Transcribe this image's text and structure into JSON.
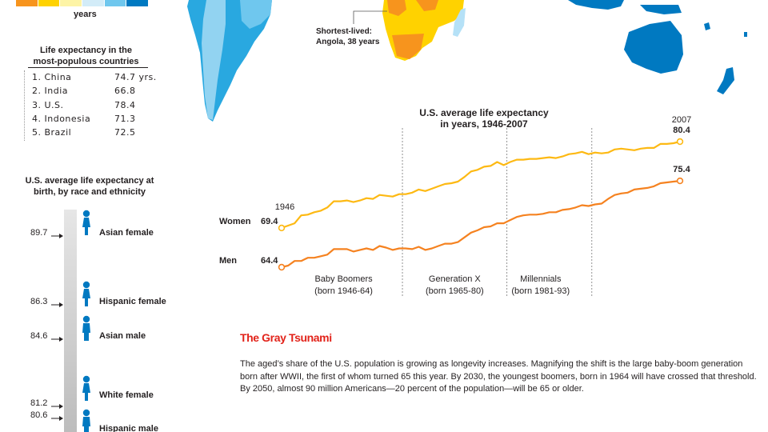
{
  "legend": {
    "colors": [
      "#f7941d",
      "#ffd200",
      "#fdf4a6",
      "#d3ecf8",
      "#6fc7ee",
      "#0079c1"
    ],
    "unit": "years"
  },
  "map": {
    "annotation_line1": "Shortest-lived:",
    "annotation_line2": "Angola, 38 years"
  },
  "populous": {
    "title_line1": "Life expectancy in the",
    "title_line2": "most-populous countries",
    "rows": [
      {
        "name": "1. China",
        "value": "74.7 yrs."
      },
      {
        "name": "2. India",
        "value": "66.8"
      },
      {
        "name": "3. U.S.",
        "value": "78.4"
      },
      {
        "name": "4. Indonesia",
        "value": "71.3"
      },
      {
        "name": "5. Brazil",
        "value": "72.5"
      }
    ]
  },
  "race": {
    "title_line1": "U.S. average life expectancy at",
    "title_line2": "birth, by race and ethnicity",
    "items": [
      {
        "label": "Asian female",
        "value": "89.7",
        "num": 89.7,
        "gender": "female"
      },
      {
        "label": "Hispanic female",
        "value": "86.3",
        "num": 86.3,
        "gender": "female"
      },
      {
        "label": "Asian male",
        "value": "84.6",
        "num": 84.6,
        "gender": "male"
      },
      {
        "label": "White female",
        "value": "81.2",
        "num": 81.2,
        "gender": "female"
      },
      {
        "label": "Hispanic male",
        "value": "80.6",
        "num": 80.6,
        "gender": "male"
      }
    ]
  },
  "chart_data": {
    "type": "line",
    "title": "U.S. average life expectancy in years, 1946-2007",
    "title_line1": "U.S. average life expectancy",
    "title_line2": "in years, 1946-2007",
    "start_label": "1946",
    "end_label": "2007",
    "xlim": [
      1946,
      2007
    ],
    "series": [
      {
        "name": "Women",
        "color": "#fdb913",
        "start_value": "69.4",
        "end_value": "80.4",
        "x": [
          1946,
          1947,
          1948,
          1949,
          1950,
          1951,
          1952,
          1953,
          1954,
          1955,
          1956,
          1957,
          1958,
          1959,
          1960,
          1961,
          1962,
          1963,
          1964,
          1965,
          1966,
          1967,
          1968,
          1969,
          1970,
          1971,
          1972,
          1973,
          1974,
          1975,
          1976,
          1977,
          1978,
          1979,
          1980,
          1981,
          1982,
          1983,
          1984,
          1985,
          1986,
          1987,
          1988,
          1989,
          1990,
          1991,
          1992,
          1993,
          1994,
          1995,
          1996,
          1997,
          1998,
          1999,
          2000,
          2001,
          2002,
          2003,
          2004,
          2005,
          2006,
          2007
        ],
        "values": [
          69.4,
          69.7,
          70.0,
          71.0,
          71.1,
          71.4,
          71.6,
          72.0,
          72.8,
          72.8,
          72.9,
          72.7,
          72.9,
          73.2,
          73.1,
          73.6,
          73.5,
          73.4,
          73.7,
          73.7,
          73.9,
          74.3,
          74.1,
          74.4,
          74.7,
          75.0,
          75.1,
          75.3,
          75.9,
          76.6,
          76.8,
          77.2,
          77.3,
          77.8,
          77.4,
          77.8,
          78.1,
          78.1,
          78.2,
          78.2,
          78.3,
          78.4,
          78.3,
          78.5,
          78.8,
          78.9,
          79.1,
          78.8,
          79.0,
          78.9,
          79.0,
          79.4,
          79.5,
          79.4,
          79.3,
          79.5,
          79.6,
          79.6,
          80.1,
          80.1,
          80.2,
          80.4
        ]
      },
      {
        "name": "Men",
        "color": "#f58220",
        "start_value": "64.4",
        "end_value": "75.4",
        "x": [
          1946,
          1947,
          1948,
          1949,
          1950,
          1951,
          1952,
          1953,
          1954,
          1955,
          1956,
          1957,
          1958,
          1959,
          1960,
          1961,
          1962,
          1963,
          1964,
          1965,
          1966,
          1967,
          1968,
          1969,
          1970,
          1971,
          1972,
          1973,
          1974,
          1975,
          1976,
          1977,
          1978,
          1979,
          1980,
          1981,
          1982,
          1983,
          1984,
          1985,
          1986,
          1987,
          1988,
          1989,
          1990,
          1991,
          1992,
          1993,
          1994,
          1995,
          1996,
          1997,
          1998,
          1999,
          2000,
          2001,
          2002,
          2003,
          2004,
          2005,
          2006,
          2007
        ],
        "values": [
          64.4,
          64.6,
          65.2,
          65.2,
          65.6,
          65.6,
          65.8,
          66.0,
          66.7,
          66.7,
          66.7,
          66.4,
          66.6,
          66.8,
          66.6,
          67.1,
          66.9,
          66.6,
          66.8,
          66.8,
          66.7,
          67.0,
          66.6,
          66.8,
          67.1,
          67.4,
          67.4,
          67.6,
          68.2,
          68.8,
          69.1,
          69.5,
          69.6,
          70.0,
          70.0,
          70.4,
          70.8,
          71.0,
          71.1,
          71.1,
          71.2,
          71.4,
          71.4,
          71.7,
          71.8,
          72.0,
          72.3,
          72.2,
          72.4,
          72.5,
          73.1,
          73.6,
          73.8,
          73.9,
          74.3,
          74.4,
          74.5,
          74.7,
          75.1,
          75.2,
          75.3,
          75.4
        ]
      }
    ],
    "generations": [
      {
        "name": "Baby Boomers",
        "range": "(born 1946-64)",
        "from": 1946,
        "to": 1964
      },
      {
        "name": "Generation X",
        "range": "(born 1965-80)",
        "from": 1965,
        "to": 1980
      },
      {
        "name": "Millennials",
        "range": "(born 1981-93)",
        "from": 1981,
        "to": 1993
      }
    ]
  },
  "tsunami": {
    "title": "The Gray Tsunami",
    "body": "The aged’s share of the U.S. population is growing as longevity increases. Magnifying the shift is the large baby-boom generation born after WWII, the first of whom turned 65 this year. By 2030, the youngest boomers, born in 1964 will have crossed that threshold. By 2050, almost 90 million Americans—20 percent of the population—will be 65 or older."
  }
}
